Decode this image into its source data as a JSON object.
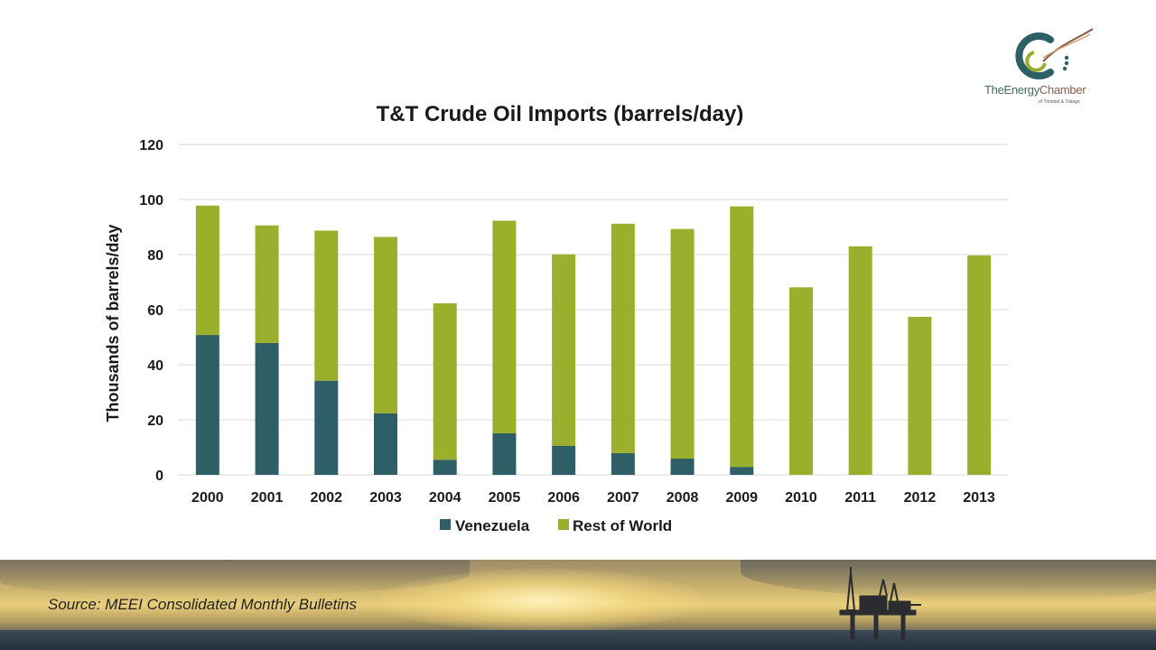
{
  "logo": {
    "brand_part1": "TheEnergy",
    "brand_part2": "Chamber",
    "subtitle": "of Trinidad & Tobago"
  },
  "footer": {
    "source": "Source: MEEI Consolidated Monthly Bulletins"
  },
  "colors": {
    "venezuela": "#2e5f66",
    "rest_of_world": "#9aaf2c",
    "gridline": "#d9d9d9"
  },
  "chart_data": {
    "type": "bar",
    "stacked": true,
    "title": "T&T Crude Oil Imports (barrels/day)",
    "xlabel": "",
    "ylabel": "Thousands of barrels/day",
    "ylim": [
      0,
      120
    ],
    "yticks": [
      0,
      20,
      40,
      60,
      80,
      100,
      120
    ],
    "grid": true,
    "legend_position": "bottom",
    "categories": [
      "2000",
      "2001",
      "2002",
      "2003",
      "2004",
      "2005",
      "2006",
      "2007",
      "2008",
      "2009",
      "2010",
      "2011",
      "2012",
      "2013"
    ],
    "series": [
      {
        "name": "Venezuela",
        "values": [
          50.8,
          47.9,
          34.2,
          22.3,
          5.5,
          15.1,
          10.5,
          7.9,
          5.9,
          2.9,
          0,
          0,
          0,
          0
        ]
      },
      {
        "name": "Rest of World",
        "values": [
          47.0,
          42.7,
          54.5,
          64.1,
          56.8,
          77.2,
          69.6,
          83.3,
          83.4,
          94.6,
          68.1,
          83.0,
          57.4,
          79.7
        ]
      }
    ]
  }
}
